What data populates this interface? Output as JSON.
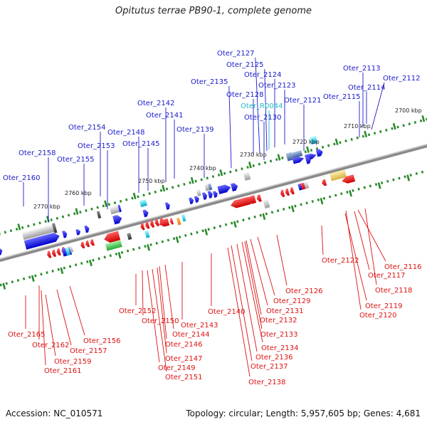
{
  "title": "Opitutus terrae PB90-1, complete genome",
  "footer": {
    "accession": "Accession: NC_010571",
    "summary": "Topology: circular; Length: 5,957,605 bp; Genes: 4,681"
  },
  "colors": {
    "forward_label": "#1a1acc",
    "reverse_label": "#dd1111",
    "rna_label": "#22bbcc",
    "backbone": "#8a8a8a",
    "tick": "#2a8a2a"
  },
  "kbp_ticks": [
    "2770 kbp",
    "2760 kbp",
    "2750 kbp",
    "2740 kbp",
    "2730 kbp",
    "2720 kbp",
    "2710 kbp",
    "2700 kbp"
  ],
  "forward_labels": [
    "Oter_2160",
    "Oter_2158",
    "Oter_2155",
    "Oter_2153",
    "Oter_2154",
    "Oter_2148",
    "Oter_2145",
    "Oter_2142",
    "Oter_2141",
    "Oter_2139",
    "Oter_2135",
    "Oter_2127",
    "Oter_2125",
    "Oter_2124",
    "Oter_2128",
    "Oter_2123",
    "Oter_R0044",
    "Oter_2130",
    "Oter_2121",
    "Oter_2113",
    "Oter_2114",
    "Oter_2115",
    "Oter_2112"
  ],
  "reverse_labels": [
    "Oter_2165",
    "Oter_2162",
    "Oter_2159",
    "Oter_2161",
    "Oter_2157",
    "Oter_2156",
    "Oter_2152",
    "Oter_2150",
    "Oter_2149",
    "Oter_2151",
    "Oter_2147",
    "Oter_2146",
    "Oter_2144",
    "Oter_2143",
    "Oter_2140",
    "Oter_2137",
    "Oter_2136",
    "Oter_2138",
    "Oter_2134",
    "Oter_2133",
    "Oter_2132",
    "Oter_2131",
    "Oter_2129",
    "Oter_2126",
    "Oter_2122",
    "Oter_2116",
    "Oter_2117",
    "Oter_2118",
    "Oter_2119",
    "Oter_2120"
  ]
}
